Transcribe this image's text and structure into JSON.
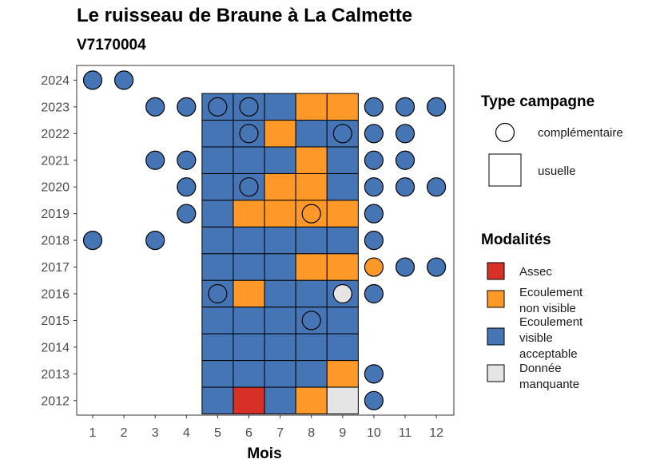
{
  "chart_data": {
    "type": "heatmap",
    "title": "Le ruisseau de Braune à La Calmette",
    "subtitle": "V7170004",
    "xlabel": "Mois",
    "ylabel": "",
    "x_ticks": [
      "1",
      "2",
      "3",
      "4",
      "5",
      "6",
      "7",
      "8",
      "9",
      "10",
      "11",
      "12"
    ],
    "y_ticks": [
      "2012",
      "2013",
      "2014",
      "2015",
      "2016",
      "2017",
      "2018",
      "2019",
      "2020",
      "2021",
      "2022",
      "2023",
      "2024"
    ],
    "colors": {
      "Assec": "#d73027",
      "Ecoulement non visible": "#fe9929",
      "Ecoulement visible acceptable": "#4575b4",
      "Donnée manquante": "#e5e5e5"
    },
    "legend_type": {
      "title": "Type campagne",
      "items": [
        {
          "key": "complementaire",
          "label": "complémentaire"
        },
        {
          "key": "usuelle",
          "label": "usuelle"
        }
      ]
    },
    "legend_modalites": {
      "title": "Modalités",
      "items": [
        {
          "key": "Assec",
          "lines": [
            "Assec"
          ]
        },
        {
          "key": "Ecoulement non visible",
          "lines": [
            "Ecoulement",
            "non visible"
          ]
        },
        {
          "key": "Ecoulement visible acceptable",
          "lines": [
            "Ecoulement",
            "visible",
            "acceptable"
          ]
        },
        {
          "key": "Donnée manquante",
          "lines": [
            "Donnée",
            "manquante"
          ]
        }
      ]
    },
    "usuelle": [
      {
        "year": 2023,
        "months": [
          "EVA",
          "EVA",
          "EVA",
          "ENV",
          "ENV"
        ]
      },
      {
        "year": 2022,
        "months": [
          "EVA",
          "EVA",
          "ENV",
          "EVA",
          "EVA"
        ]
      },
      {
        "year": 2021,
        "months": [
          "EVA",
          "EVA",
          "EVA",
          "ENV",
          "EVA"
        ]
      },
      {
        "year": 2020,
        "months": [
          "EVA",
          "EVA",
          "ENV",
          "ENV",
          "EVA"
        ]
      },
      {
        "year": 2019,
        "months": [
          "EVA",
          "ENV",
          "ENV",
          "ENV",
          "ENV"
        ]
      },
      {
        "year": 2018,
        "months": [
          "EVA",
          "EVA",
          "EVA",
          "EVA",
          "EVA"
        ]
      },
      {
        "year": 2017,
        "months": [
          "EVA",
          "EVA",
          "EVA",
          "ENV",
          "ENV"
        ]
      },
      {
        "year": 2016,
        "months": [
          "EVA",
          "ENV",
          "EVA",
          "EVA",
          "EVA"
        ]
      },
      {
        "year": 2015,
        "months": [
          "EVA",
          "EVA",
          "EVA",
          "EVA",
          "EVA"
        ]
      },
      {
        "year": 2014,
        "months": [
          "EVA",
          "EVA",
          "EVA",
          "EVA",
          "EVA"
        ]
      },
      {
        "year": 2013,
        "months": [
          "EVA",
          "EVA",
          "EVA",
          "EVA",
          "ENV"
        ]
      },
      {
        "year": 2012,
        "months": [
          "EVA",
          "ASS",
          "EVA",
          "ENV",
          "DM"
        ]
      }
    ],
    "usuelle_start_month": 5,
    "codes": {
      "ASS": "Assec",
      "ENV": "Ecoulement non visible",
      "EVA": "Ecoulement visible acceptable",
      "DM": "Donnée manquante"
    },
    "complementaire": [
      {
        "year": 2024,
        "month": 1,
        "code": "EVA"
      },
      {
        "year": 2024,
        "month": 2,
        "code": "EVA"
      },
      {
        "year": 2023,
        "month": 3,
        "code": "EVA"
      },
      {
        "year": 2023,
        "month": 4,
        "code": "EVA"
      },
      {
        "year": 2023,
        "month": 5,
        "code": "EVA"
      },
      {
        "year": 2023,
        "month": 6,
        "code": "EVA"
      },
      {
        "year": 2023,
        "month": 10,
        "code": "EVA"
      },
      {
        "year": 2023,
        "month": 11,
        "code": "EVA"
      },
      {
        "year": 2023,
        "month": 12,
        "code": "EVA"
      },
      {
        "year": 2022,
        "month": 6,
        "code": "EVA"
      },
      {
        "year": 2022,
        "month": 9,
        "code": "EVA"
      },
      {
        "year": 2022,
        "month": 10,
        "code": "EVA"
      },
      {
        "year": 2022,
        "month": 11,
        "code": "EVA"
      },
      {
        "year": 2021,
        "month": 3,
        "code": "EVA"
      },
      {
        "year": 2021,
        "month": 4,
        "code": "EVA"
      },
      {
        "year": 2021,
        "month": 10,
        "code": "EVA"
      },
      {
        "year": 2021,
        "month": 11,
        "code": "EVA"
      },
      {
        "year": 2020,
        "month": 4,
        "code": "EVA"
      },
      {
        "year": 2020,
        "month": 6,
        "code": "EVA"
      },
      {
        "year": 2020,
        "month": 10,
        "code": "EVA"
      },
      {
        "year": 2020,
        "month": 11,
        "code": "EVA"
      },
      {
        "year": 2020,
        "month": 12,
        "code": "EVA"
      },
      {
        "year": 2019,
        "month": 4,
        "code": "EVA"
      },
      {
        "year": 2019,
        "month": 8,
        "code": "ENV"
      },
      {
        "year": 2019,
        "month": 10,
        "code": "EVA"
      },
      {
        "year": 2018,
        "month": 1,
        "code": "EVA"
      },
      {
        "year": 2018,
        "month": 3,
        "code": "EVA"
      },
      {
        "year": 2018,
        "month": 10,
        "code": "EVA"
      },
      {
        "year": 2017,
        "month": 10,
        "code": "ENV"
      },
      {
        "year": 2017,
        "month": 11,
        "code": "EVA"
      },
      {
        "year": 2017,
        "month": 12,
        "code": "EVA"
      },
      {
        "year": 2016,
        "month": 5,
        "code": "EVA"
      },
      {
        "year": 2016,
        "month": 9,
        "code": "DM"
      },
      {
        "year": 2016,
        "month": 10,
        "code": "EVA"
      },
      {
        "year": 2015,
        "month": 8,
        "code": "EVA"
      },
      {
        "year": 2013,
        "month": 10,
        "code": "EVA"
      },
      {
        "year": 2012,
        "month": 10,
        "code": "EVA"
      }
    ]
  }
}
